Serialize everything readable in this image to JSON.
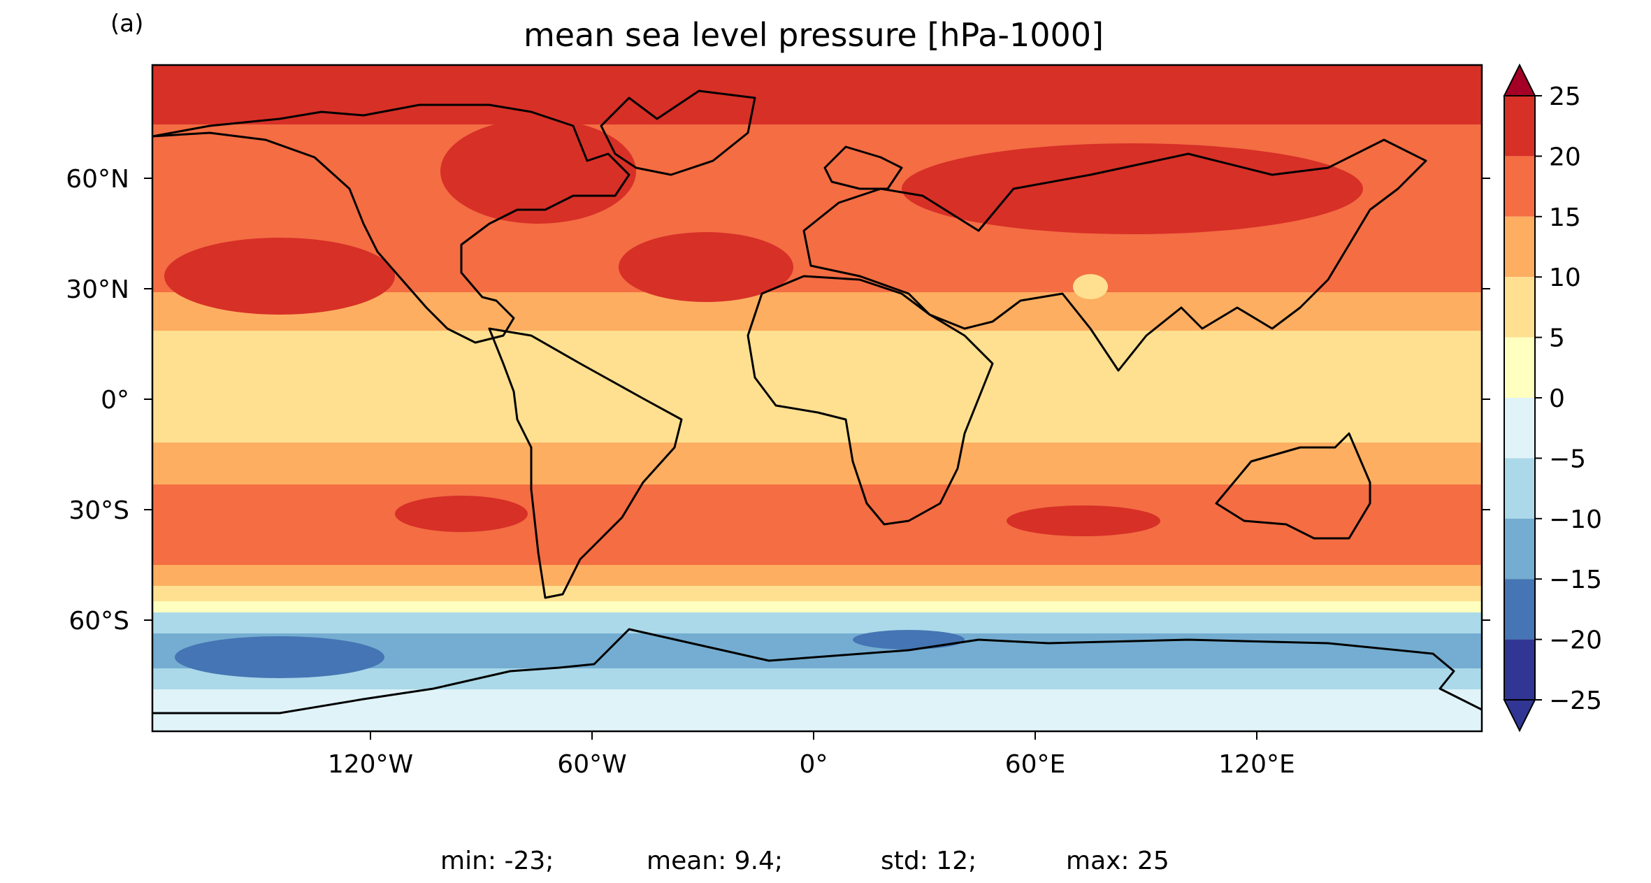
{
  "panel_label": "(a)",
  "title": "mean sea level pressure [hPa-1000]",
  "y_ticks": [
    "60°N",
    "30°N",
    "0°",
    "30°S",
    "60°S"
  ],
  "x_ticks": [
    "120°W",
    "60°W",
    "0°",
    "60°E",
    "120°E"
  ],
  "colorbar": {
    "ticks": [
      "25",
      "20",
      "15",
      "10",
      "5",
      "0",
      "−5",
      "−10",
      "−15",
      "−20",
      "−25"
    ],
    "colors": [
      "#a50026",
      "#d73027",
      "#f46d43",
      "#fdae61",
      "#fee090",
      "#ffffbf",
      "#e0f3f8",
      "#abd9e9",
      "#74add1",
      "#4575b4",
      "#313695"
    ],
    "extend": "both"
  },
  "stats": {
    "min": "min: -23;",
    "mean": "mean: 9.4;",
    "std": "std: 12;",
    "max": "max: 25"
  },
  "chart_data": {
    "type": "heatmap",
    "projection": "plate-carree (equirectangular)",
    "variable": "mean sea level pressure minus 1000 hPa",
    "title": "mean sea level pressure [hPa-1000]",
    "lon_range": [
      -180,
      180
    ],
    "lat_range": [
      -90,
      90
    ],
    "contour_levels": [
      -25,
      -20,
      -15,
      -10,
      -5,
      0,
      5,
      10,
      15,
      20,
      25
    ],
    "level_colors": [
      "#313695",
      "#4575b4",
      "#74add1",
      "#abd9e9",
      "#e0f3f8",
      "#ffffbf",
      "#fee090",
      "#fdae61",
      "#f46d43",
      "#d73027"
    ],
    "zonal_band_estimates": [
      {
        "lat_from": 90,
        "lat_to": 75,
        "value": 22
      },
      {
        "lat_from": 75,
        "lat_to": 45,
        "value": 17
      },
      {
        "lat_from": 45,
        "lat_to": 25,
        "value": 19
      },
      {
        "lat_from": 25,
        "lat_to": 15,
        "value": 13
      },
      {
        "lat_from": 15,
        "lat_to": -10,
        "value": 9
      },
      {
        "lat_from": -10,
        "lat_to": -25,
        "value": 13
      },
      {
        "lat_from": -25,
        "lat_to": -45,
        "value": 18
      },
      {
        "lat_from": -45,
        "lat_to": -52,
        "value": 12
      },
      {
        "lat_from": -52,
        "lat_to": -58,
        "value": 3
      },
      {
        "lat_from": -58,
        "lat_to": -65,
        "value": -8
      },
      {
        "lat_from": -65,
        "lat_to": -75,
        "value": -17
      },
      {
        "lat_from": -75,
        "lat_to": -90,
        "value": -8
      }
    ],
    "stats": {
      "min": -23,
      "mean": 9.4,
      "std": 12,
      "max": 25
    }
  }
}
